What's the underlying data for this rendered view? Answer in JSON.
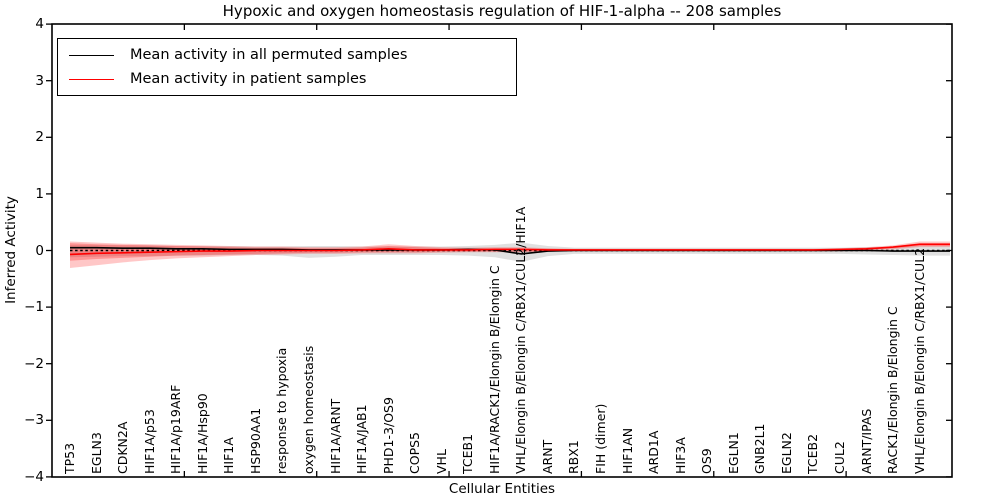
{
  "title": "Hypoxic and oxygen homeostasis regulation of HIF-1-alpha -- 208 samples",
  "legend": {
    "entries": [
      {
        "label": "Mean activity in all permuted samples",
        "color": "#000000"
      },
      {
        "label": "Mean activity in patient samples",
        "color": "#ff0000"
      }
    ],
    "position": "upper left"
  },
  "axes": {
    "xlabel": "Cellular Entities",
    "ylabel": "Inferred Activity",
    "yticks": [
      4,
      3,
      2,
      1,
      0,
      -1,
      -2,
      -3,
      -4
    ],
    "ylim": [
      -4,
      4
    ]
  },
  "colors": {
    "permuted_line": "#000000",
    "patient_line": "#ff0000",
    "permuted_band": "rgba(0,0,0,0.12)",
    "patient_band_outer": "rgba(255,0,0,0.22)",
    "patient_band_inner": "rgba(255,0,0,0.25)",
    "zero_line": "#000000"
  },
  "chart_data": {
    "type": "line",
    "title": "Hypoxic and oxygen homeostasis regulation of HIF-1-alpha -- 208 samples",
    "xlabel": "Cellular Entities",
    "ylabel": "Inferred Activity",
    "ylim": [
      -4,
      4
    ],
    "yticks": [
      4,
      3,
      2,
      1,
      0,
      -1,
      -2,
      -3,
      -4
    ],
    "grid": false,
    "legend_position": "upper left",
    "zero_reference_line": {
      "y": 0,
      "style": "dotted",
      "color": "#000000"
    },
    "categories": [
      "TP53",
      "EGLN3",
      "CDKN2A",
      "HIF1A/p53",
      "HIF1A/p19ARF",
      "HIF1A/Hsp90",
      "HIF1A",
      "HSP90AA1",
      "response to hypoxia",
      "oxygen homeostasis",
      "HIF1A/ARNT",
      "HIF1A/JAB1",
      "PHD1-3/OS9",
      "COPS5",
      "VHL",
      "TCEB1",
      "HIF1A/RACK1/Elongin B/Elongin C",
      "VHL/Elongin B/Elongin C/RBX1/CUL2/HIF1A",
      "ARNT",
      "RBX1",
      "FIH (dimer)",
      "HIF1AN",
      "ARD1A",
      "HIF3A",
      "OS9",
      "EGLN1",
      "GNB2L1",
      "EGLN2",
      "TCEB2",
      "CUL2",
      "ARNT/IPAS",
      "RACK1/Elongin B/Elongin C",
      "VHL/Elongin B/Elongin C/RBX1/CUL2"
    ],
    "series": [
      {
        "name": "Mean activity in all permuted samples",
        "color": "#000000",
        "style": "solid",
        "values": [
          0.05,
          0.05,
          0.04,
          0.04,
          0.03,
          0.03,
          0.02,
          0.02,
          0.02,
          0.01,
          0.01,
          0.01,
          0.01,
          0.01,
          0.01,
          0.02,
          0.01,
          -0.06,
          -0.01,
          0.0,
          0.0,
          0.0,
          0.0,
          0.0,
          0.0,
          0.0,
          0.0,
          0.0,
          0.0,
          0.0,
          0.0,
          -0.01,
          -0.01
        ]
      },
      {
        "name": "Mean activity in patient samples",
        "color": "#ff0000",
        "style": "solid",
        "values": [
          -0.07,
          -0.05,
          -0.04,
          -0.03,
          -0.02,
          -0.01,
          -0.01,
          0.0,
          0.0,
          0.0,
          0.0,
          0.01,
          0.03,
          0.01,
          0.01,
          0.01,
          0.02,
          0.02,
          0.01,
          0.01,
          0.01,
          0.01,
          0.01,
          0.01,
          0.01,
          0.01,
          0.01,
          0.01,
          0.01,
          0.02,
          0.03,
          0.06,
          0.11
        ]
      }
    ],
    "bands": [
      {
        "name": "permuted-samples-std-band",
        "color": "rgba(0,0,0,0.12)",
        "upper": [
          0.1,
          0.1,
          0.09,
          0.09,
          0.08,
          0.08,
          0.08,
          0.07,
          0.07,
          0.08,
          0.08,
          0.07,
          0.07,
          0.07,
          0.07,
          0.08,
          0.1,
          0.14,
          0.08,
          0.05,
          0.05,
          0.05,
          0.05,
          0.05,
          0.05,
          0.05,
          0.05,
          0.05,
          0.05,
          0.05,
          0.06,
          0.07,
          0.08
        ],
        "lower": [
          -0.12,
          -0.11,
          -0.1,
          -0.1,
          -0.09,
          -0.09,
          -0.08,
          -0.08,
          -0.09,
          -0.13,
          -0.11,
          -0.08,
          -0.08,
          -0.08,
          -0.08,
          -0.09,
          -0.12,
          -0.2,
          -0.1,
          -0.06,
          -0.06,
          -0.06,
          -0.06,
          -0.06,
          -0.06,
          -0.06,
          -0.06,
          -0.06,
          -0.06,
          -0.06,
          -0.07,
          -0.08,
          -0.09
        ]
      },
      {
        "name": "patient-samples-outer-band",
        "color": "rgba(255,0,0,0.22)",
        "upper": [
          0.16,
          0.14,
          0.12,
          0.11,
          0.1,
          0.09,
          0.08,
          0.07,
          0.07,
          0.06,
          0.06,
          0.07,
          0.11,
          0.08,
          0.06,
          0.05,
          0.06,
          0.06,
          0.04,
          0.03,
          0.03,
          0.03,
          0.03,
          0.03,
          0.03,
          0.03,
          0.03,
          0.03,
          0.03,
          0.04,
          0.06,
          0.09,
          0.16
        ],
        "lower": [
          -0.31,
          -0.26,
          -0.21,
          -0.17,
          -0.14,
          -0.12,
          -0.1,
          -0.08,
          -0.07,
          -0.06,
          -0.06,
          -0.05,
          -0.05,
          -0.05,
          -0.04,
          -0.03,
          -0.03,
          -0.03,
          -0.02,
          -0.01,
          -0.01,
          -0.01,
          -0.01,
          -0.01,
          -0.01,
          -0.01,
          -0.01,
          -0.01,
          -0.01,
          -0.01,
          0.0,
          0.02,
          0.06
        ]
      },
      {
        "name": "patient-samples-inner-band",
        "color": "rgba(255,0,0,0.25)",
        "upper": [
          0.13,
          0.11,
          0.1,
          0.09,
          0.08,
          0.07,
          0.06,
          0.05,
          0.05,
          0.04,
          0.04,
          0.05,
          0.08,
          0.06,
          0.04,
          0.04,
          0.04,
          0.04,
          0.03,
          0.02,
          0.02,
          0.02,
          0.02,
          0.02,
          0.02,
          0.02,
          0.02,
          0.02,
          0.02,
          0.03,
          0.04,
          0.07,
          0.13
        ],
        "lower": [
          -0.18,
          -0.15,
          -0.13,
          -0.11,
          -0.09,
          -0.08,
          -0.07,
          -0.06,
          -0.05,
          -0.04,
          -0.04,
          -0.03,
          -0.03,
          -0.03,
          -0.02,
          -0.02,
          -0.02,
          -0.02,
          -0.01,
          0.0,
          0.0,
          0.0,
          0.0,
          0.0,
          0.0,
          0.0,
          0.0,
          0.0,
          0.0,
          0.0,
          0.01,
          0.04,
          0.08
        ]
      }
    ]
  }
}
